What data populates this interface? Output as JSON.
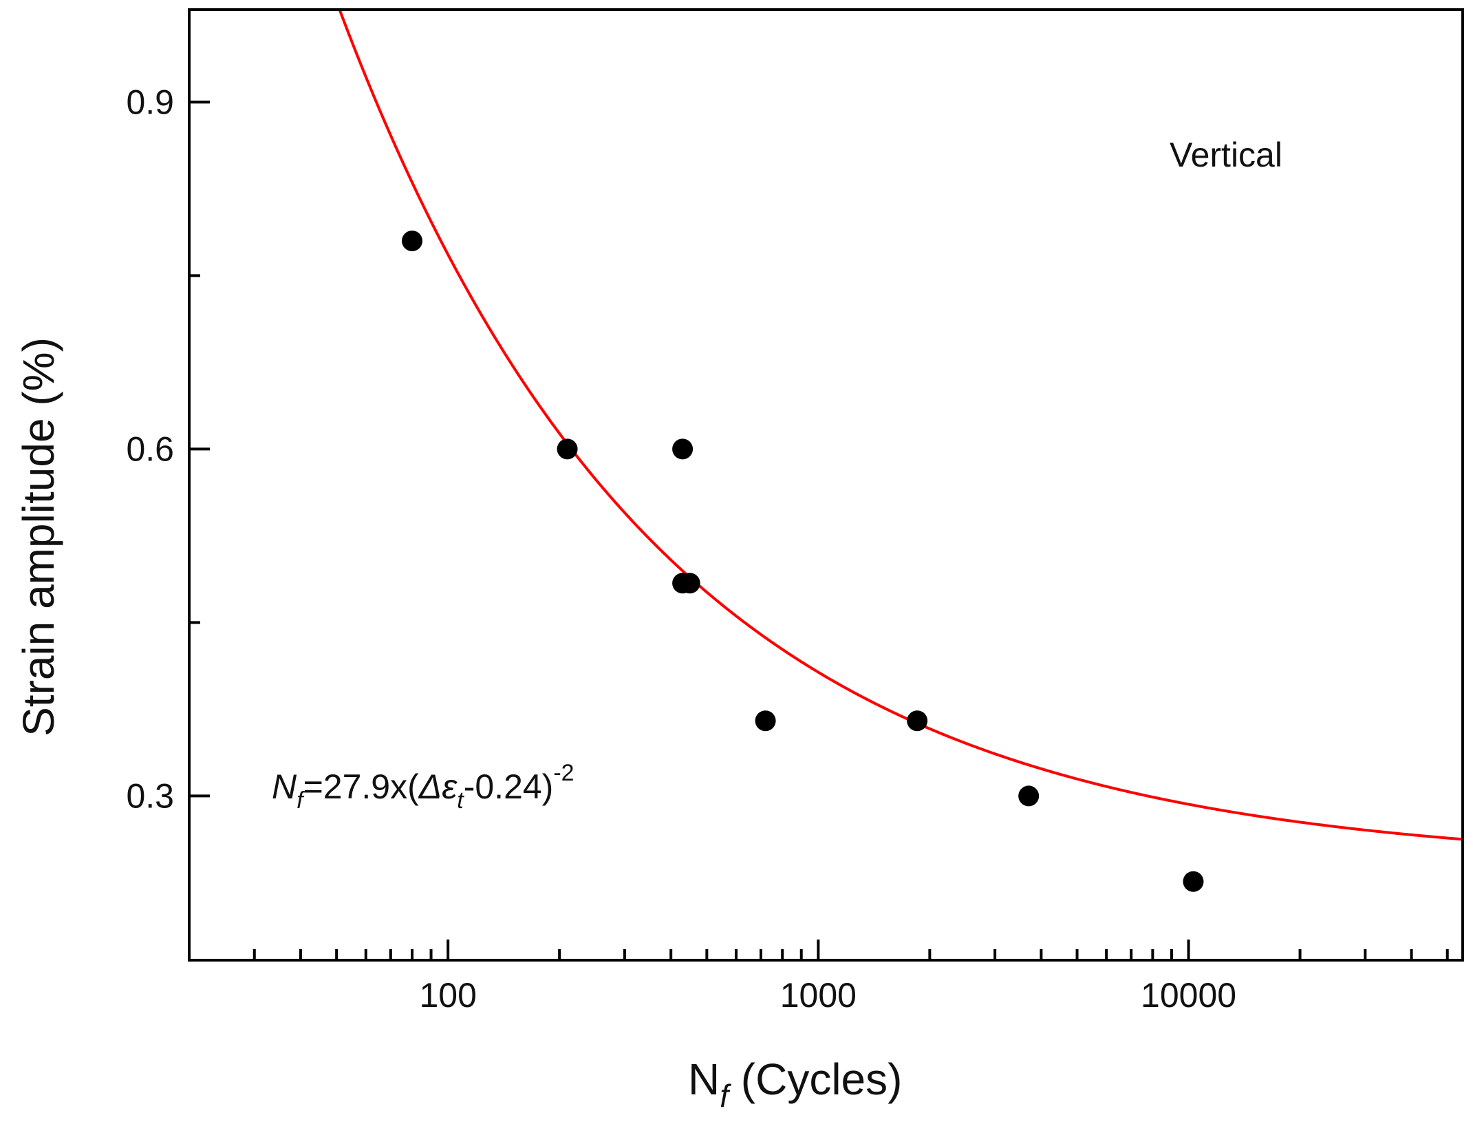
{
  "chart_data": {
    "type": "scatter",
    "title": "",
    "x_scale": "log",
    "xlim": [
      20,
      55000
    ],
    "ylim": [
      0.158,
      0.98
    ],
    "x_ticks": [
      100,
      1000,
      10000
    ],
    "x_tick_labels": [
      "100",
      "1000",
      "10000"
    ],
    "y_ticks": [
      0.3,
      0.6,
      0.9
    ],
    "y_tick_labels": [
      "0.3",
      "0.6",
      "0.9"
    ],
    "xlabel": {
      "main": "N",
      "sub": "f",
      "rest": " (Cycles)"
    },
    "ylabel": "Strain amplitude (%)",
    "series": [
      {
        "name": "Vertical",
        "kind": "scatter",
        "color": "#000000",
        "points": [
          {
            "x": 80,
            "y": 0.78
          },
          {
            "x": 210,
            "y": 0.6
          },
          {
            "x": 430,
            "y": 0.6
          },
          {
            "x": 430,
            "y": 0.484
          },
          {
            "x": 450,
            "y": 0.484
          },
          {
            "x": 720,
            "y": 0.365
          },
          {
            "x": 1850,
            "y": 0.365
          },
          {
            "x": 3700,
            "y": 0.3
          },
          {
            "x": 10300,
            "y": 0.226
          }
        ]
      },
      {
        "name": "fit",
        "kind": "line",
        "color": "#ff0000",
        "equation": "Nf = 27.9 x (Δεt - 0.24)^-2",
        "coefficient": 27.9,
        "offset": 0.24,
        "exponent": -2,
        "x_range": [
          20,
          55000
        ]
      }
    ],
    "legend_text": "Vertical",
    "annotation": {
      "N": "N",
      "f": "f",
      "mid": "=27.9x(",
      "delta": "Δε",
      "t": "t",
      "tail": "-0.24)",
      "exp": "-2"
    }
  }
}
